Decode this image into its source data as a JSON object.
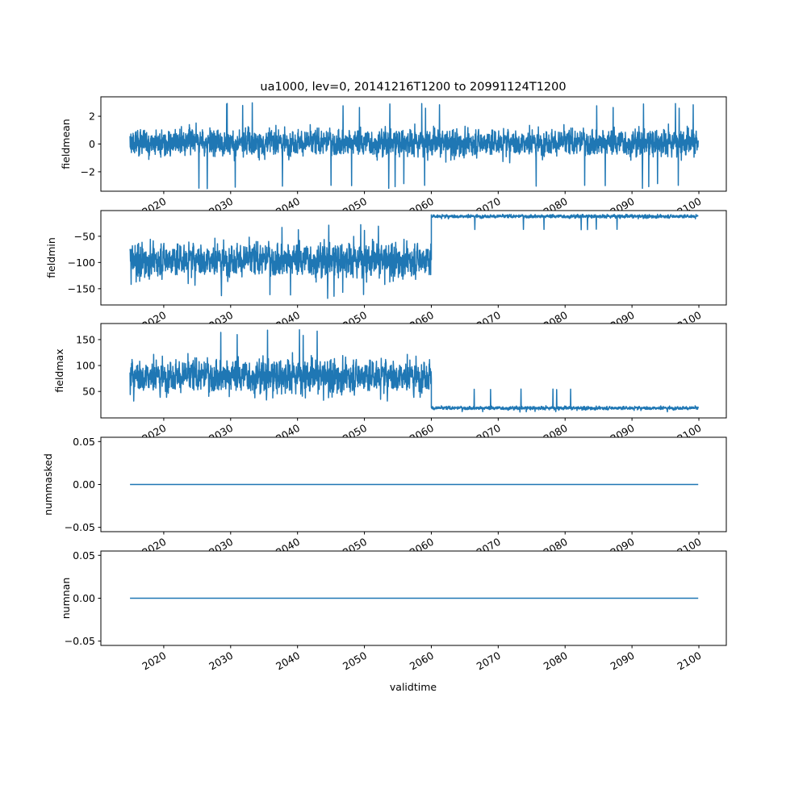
{
  "chart_data": [
    {
      "type": "line",
      "title": "ua1000, lev=0, 20141216T1200 to 20991124T1200",
      "ylabel": "fieldmean",
      "xlabel": "",
      "x_range": [
        2014.96,
        2099.9
      ],
      "xlim": [
        2010.6,
        2104.1
      ],
      "ylim": [
        -3.4,
        3.4
      ],
      "yticks": [
        -2,
        0,
        2
      ],
      "ytick_labels": [
        "−2",
        "0",
        "2"
      ],
      "segments": [
        {
          "from": 2014.96,
          "to": 2099.9,
          "center": 0.1,
          "low": -3.3,
          "high": 3.0,
          "spread": 0.9
        }
      ]
    },
    {
      "type": "line",
      "ylabel": "fieldmin",
      "xlim": [
        2010.6,
        2104.1
      ],
      "ylim": [
        -181,
        -1
      ],
      "yticks": [
        -150,
        -100,
        -50
      ],
      "ytick_labels": [
        "−150",
        "−100",
        "−50"
      ],
      "segments": [
        {
          "from": 2014.96,
          "to": 2060.0,
          "center": -95,
          "low": -172,
          "high": -25,
          "spread": 30
        },
        {
          "from": 2060.0,
          "to": 2099.9,
          "center": -12,
          "low": -38,
          "high": -8,
          "spread": 3
        }
      ]
    },
    {
      "type": "line",
      "ylabel": "fieldmax",
      "xlim": [
        2010.6,
        2104.1
      ],
      "ylim": [
        -1,
        181
      ],
      "yticks": [
        50,
        100,
        150
      ],
      "ytick_labels": [
        "50",
        "100",
        "150"
      ],
      "segments": [
        {
          "from": 2014.96,
          "to": 2060.0,
          "center": 80,
          "low": 30,
          "high": 172,
          "spread": 30
        },
        {
          "from": 2060.0,
          "to": 2099.9,
          "center": 18,
          "low": 10,
          "high": 55,
          "spread": 3
        }
      ]
    },
    {
      "type": "line",
      "ylabel": "nummasked",
      "xlim": [
        2010.6,
        2104.1
      ],
      "ylim": [
        -0.055,
        0.055
      ],
      "yticks": [
        -0.05,
        0.0,
        0.05
      ],
      "ytick_labels": [
        "−0.05",
        "0.00",
        "0.05"
      ],
      "segments": [
        {
          "from": 2014.96,
          "to": 2099.9,
          "center": 0,
          "low": 0,
          "high": 0,
          "spread": 0
        }
      ]
    },
    {
      "type": "line",
      "ylabel": "numnan",
      "xlabel": "validtime",
      "xlim": [
        2010.6,
        2104.1
      ],
      "ylim": [
        -0.055,
        0.055
      ],
      "yticks": [
        -0.05,
        0.0,
        0.05
      ],
      "ytick_labels": [
        "−0.05",
        "0.00",
        "0.05"
      ],
      "segments": [
        {
          "from": 2014.96,
          "to": 2099.9,
          "center": 0,
          "low": 0,
          "high": 0,
          "spread": 0
        }
      ]
    }
  ],
  "xticks": [
    2020,
    2030,
    2040,
    2050,
    2060,
    2070,
    2080,
    2090,
    2100
  ],
  "xtick_labels": [
    "2020",
    "2030",
    "2040",
    "2050",
    "2060",
    "2070",
    "2080",
    "2090",
    "2100"
  ],
  "line_color": "#1f77b4"
}
